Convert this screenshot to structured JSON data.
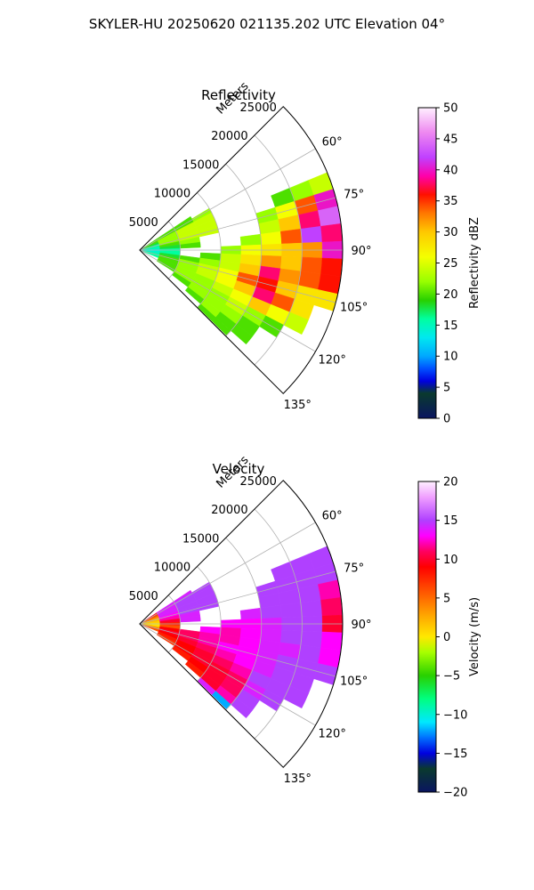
{
  "figure": {
    "title": "SKYLER-HU  20250620  021135.202 UTC Elevation 04°"
  },
  "chart_data": [
    {
      "type": "heatmap",
      "subtype": "polar-sector",
      "title": "Reflectivity",
      "range_label": "Meters",
      "range_ticks": [
        5000,
        10000,
        15000,
        20000,
        25000
      ],
      "range_tick_labels": [
        "5000",
        "10000",
        "15000",
        "20000",
        "25000"
      ],
      "rlim": [
        0,
        25000
      ],
      "azimuth_range": [
        45,
        135
      ],
      "azimuth_ticks": [
        60,
        75,
        90,
        105,
        120,
        135
      ],
      "azimuth_tick_labels": [
        "60°",
        "75°",
        "90°",
        "105°",
        "120°",
        "135°"
      ],
      "grid": true,
      "colorbar": {
        "label": "Reflectivity dBZ",
        "vmin": 0,
        "vmax": 50,
        "ticks": [
          0,
          5,
          10,
          15,
          20,
          25,
          30,
          35,
          40,
          45,
          50
        ],
        "tick_labels": [
          "0",
          "5",
          "10",
          "15",
          "20",
          "25",
          "30",
          "35",
          "40",
          "45",
          "50"
        ],
        "stops": [
          {
            "v": 0,
            "c": "#0a1560"
          },
          {
            "v": 4,
            "c": "#0a3a2e"
          },
          {
            "v": 6,
            "c": "#0000e0"
          },
          {
            "v": 8,
            "c": "#0050ff"
          },
          {
            "v": 10,
            "c": "#00a8ff"
          },
          {
            "v": 13,
            "c": "#00e8f0"
          },
          {
            "v": 16,
            "c": "#00ffa0"
          },
          {
            "v": 19,
            "c": "#28d000"
          },
          {
            "v": 22,
            "c": "#98ff00"
          },
          {
            "v": 26,
            "c": "#f4ff00"
          },
          {
            "v": 30,
            "c": "#ffc800"
          },
          {
            "v": 33,
            "c": "#ff7800"
          },
          {
            "v": 36,
            "c": "#ff1000"
          },
          {
            "v": 39,
            "c": "#ff00aa"
          },
          {
            "v": 42,
            "c": "#c040ff"
          },
          {
            "v": 46,
            "c": "#ee88f0"
          },
          {
            "v": 50,
            "c": "#fff0ff"
          }
        ]
      },
      "sample_field": {
        "range_bins_m": [
          0,
          2500,
          5000,
          7500,
          10000,
          12500,
          15000,
          17500,
          20000,
          22500,
          25000
        ],
        "rows": [
          {
            "az": 58,
            "vals": [
              20,
              20,
              20,
              null,
              null,
              null,
              null,
              null,
              null,
              null
            ]
          },
          {
            "az": 60,
            "vals": [
              20,
              20,
              20,
              22,
              null,
              null,
              null,
              null,
              null,
              null
            ]
          },
          {
            "az": 65,
            "vals": [
              20,
              22,
              24,
              24,
              null,
              null,
              null,
              null,
              null,
              null
            ]
          },
          {
            "az": 70,
            "vals": [
              18,
              22,
              24,
              24,
              null,
              null,
              null,
              20,
              22,
              24
            ]
          },
          {
            "az": 75,
            "vals": [
              16,
              22,
              24,
              24,
              null,
              null,
              22,
              26,
              34,
              40
            ]
          },
          {
            "az": 80,
            "vals": [
              16,
              20,
              22,
              null,
              null,
              null,
              24,
              30,
              38,
              44
            ]
          },
          {
            "az": 85,
            "vals": [
              15,
              18,
              20,
              null,
              null,
              22,
              26,
              34,
              42,
              38
            ]
          },
          {
            "az": 90,
            "vals": [
              14,
              16,
              null,
              null,
              22,
              26,
              28,
              30,
              32,
              40
            ]
          },
          {
            "az": 95,
            "vals": [
              14,
              16,
              null,
              20,
              24,
              28,
              32,
              30,
              34,
              36
            ]
          },
          {
            "az": 100,
            "vals": [
              15,
              18,
              20,
              22,
              24,
              30,
              38,
              32,
              34,
              36
            ]
          },
          {
            "az": 105,
            "vals": [
              16,
              20,
              22,
              24,
              26,
              34,
              36,
              30,
              28,
              28
            ]
          },
          {
            "az": 110,
            "vals": [
              16,
              20,
              22,
              24,
              26,
              30,
              38,
              34,
              28,
              null
            ]
          },
          {
            "az": 115,
            "vals": [
              null,
              20,
              22,
              22,
              24,
              26,
              30,
              26,
              24,
              null
            ]
          },
          {
            "az": 120,
            "vals": [
              null,
              20,
              22,
              22,
              22,
              24,
              22,
              20,
              null,
              null
            ]
          },
          {
            "az": 125,
            "vals": [
              null,
              null,
              20,
              22,
              22,
              22,
              20,
              null,
              null,
              null
            ]
          },
          {
            "az": 130,
            "vals": [
              null,
              null,
              null,
              20,
              22,
              20,
              20,
              null,
              null,
              null
            ]
          },
          {
            "az": 133,
            "vals": [
              null,
              null,
              null,
              null,
              20,
              20,
              null,
              null,
              null,
              null
            ]
          }
        ]
      }
    },
    {
      "type": "heatmap",
      "subtype": "polar-sector",
      "title": "Velocity",
      "range_label": "Meters",
      "range_ticks": [
        5000,
        10000,
        15000,
        20000,
        25000
      ],
      "range_tick_labels": [
        "5000",
        "10000",
        "15000",
        "20000",
        "25000"
      ],
      "rlim": [
        0,
        25000
      ],
      "azimuth_range": [
        45,
        135
      ],
      "azimuth_ticks": [
        60,
        75,
        90,
        105,
        120,
        135
      ],
      "azimuth_tick_labels": [
        "60°",
        "75°",
        "90°",
        "105°",
        "120°",
        "135°"
      ],
      "grid": true,
      "colorbar": {
        "label": "Velocity (m/s)",
        "vmin": -20,
        "vmax": 20,
        "ticks": [
          -20,
          -15,
          -10,
          -5,
          0,
          5,
          10,
          15,
          20
        ],
        "tick_labels": [
          "−20",
          "−15",
          "−10",
          "−5",
          "0",
          "5",
          "10",
          "15",
          "20"
        ],
        "stops": [
          {
            "v": -20,
            "c": "#0a1560"
          },
          {
            "v": -17,
            "c": "#0a3a2e"
          },
          {
            "v": -15,
            "c": "#0000e0"
          },
          {
            "v": -13,
            "c": "#0070ff"
          },
          {
            "v": -11,
            "c": "#00e8ff"
          },
          {
            "v": -8,
            "c": "#00ff80"
          },
          {
            "v": -5,
            "c": "#28d000"
          },
          {
            "v": -2,
            "c": "#a8ff00"
          },
          {
            "v": 0,
            "c": "#ffe800"
          },
          {
            "v": 3,
            "c": "#ffa000"
          },
          {
            "v": 6,
            "c": "#ff5000"
          },
          {
            "v": 9,
            "c": "#ff0000"
          },
          {
            "v": 11,
            "c": "#ff0060"
          },
          {
            "v": 13,
            "c": "#ff00ff"
          },
          {
            "v": 15,
            "c": "#b040ff"
          },
          {
            "v": 18,
            "c": "#f0a0ff"
          },
          {
            "v": 20,
            "c": "#fff0ff"
          }
        ]
      },
      "sample_field": {
        "range_bins_m": [
          0,
          2500,
          5000,
          7500,
          10000,
          12500,
          15000,
          17500,
          20000,
          22500,
          25000
        ],
        "rows": [
          {
            "az": 58,
            "vals": [
              10,
              14,
              14,
              null,
              null,
              null,
              null,
              null,
              null,
              null
            ]
          },
          {
            "az": 60,
            "vals": [
              8,
              14,
              15,
              15,
              null,
              null,
              null,
              null,
              null,
              null
            ]
          },
          {
            "az": 65,
            "vals": [
              6,
              14,
              15,
              15,
              null,
              null,
              null,
              null,
              null,
              null
            ]
          },
          {
            "az": 70,
            "vals": [
              4,
              14,
              15,
              15,
              null,
              null,
              null,
              15,
              15,
              15
            ]
          },
          {
            "az": 75,
            "vals": [
              2,
              13,
              15,
              15,
              null,
              null,
              15,
              15,
              15,
              15
            ]
          },
          {
            "az": 80,
            "vals": [
              2,
              12,
              14,
              null,
              null,
              null,
              15,
              15,
              15,
              12
            ]
          },
          {
            "az": 85,
            "vals": [
              1,
              10,
              14,
              null,
              null,
              14,
              15,
              15,
              15,
              11
            ]
          },
          {
            "az": 90,
            "vals": [
              0,
              8,
              null,
              null,
              13,
              13,
              14,
              15,
              15,
              10
            ]
          },
          {
            "az": 95,
            "vals": [
              0,
              6,
              null,
              13,
              12,
              13,
              14,
              15,
              15,
              13
            ]
          },
          {
            "az": 100,
            "vals": [
              2,
              9,
              11,
              12,
              12,
              13,
              14,
              14,
              15,
              13
            ]
          },
          {
            "az": 105,
            "vals": [
              5,
              10,
              11,
              12,
              13,
              13,
              14,
              15,
              15,
              15
            ]
          },
          {
            "az": 110,
            "vals": [
              6,
              9,
              10,
              11,
              12,
              13,
              14,
              15,
              15,
              null
            ]
          },
          {
            "az": 115,
            "vals": [
              null,
              8,
              9,
              10,
              11,
              12,
              15,
              15,
              15,
              null
            ]
          },
          {
            "az": 120,
            "vals": [
              null,
              7,
              9,
              10,
              10,
              11,
              14,
              15,
              null,
              null
            ]
          },
          {
            "az": 125,
            "vals": [
              null,
              null,
              8,
              9,
              10,
              11,
              15,
              null,
              null,
              null
            ]
          },
          {
            "az": 130,
            "vals": [
              null,
              null,
              null,
              8,
              10,
              12,
              15,
              null,
              null,
              null
            ]
          },
          {
            "az": 133,
            "vals": [
              null,
              null,
              null,
              null,
              14,
              -12,
              null,
              null,
              null,
              null
            ]
          }
        ]
      }
    }
  ]
}
